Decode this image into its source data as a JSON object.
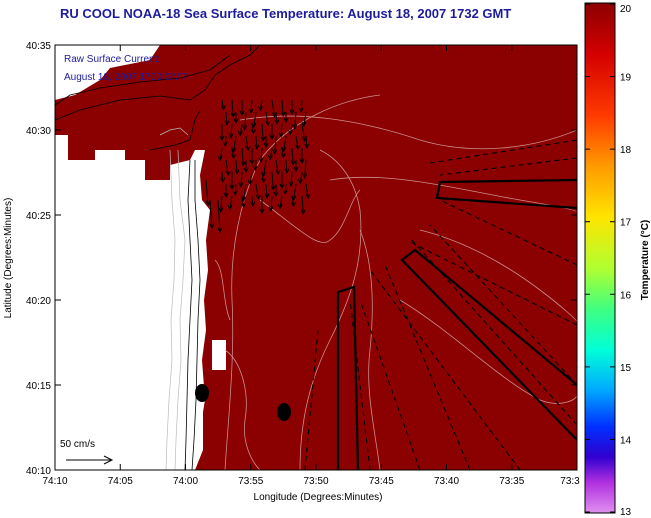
{
  "title": "RU COOL  NOAA-18  Sea Surface Temperature:  August 18, 2007 1732 GMT",
  "inset": {
    "line1": "Raw Surface Current:",
    "line2": "August 18, 2007 1700 GMT"
  },
  "scale_label": "50 cm/s",
  "axes": {
    "xlabel": "Longitude (Degrees:Minutes)",
    "ylabel": "Latitude (Degrees:Minutes)",
    "xticks": [
      "74:10",
      "74:05",
      "74:00",
      "73:55",
      "73:50",
      "73:45",
      "73:40",
      "73:35",
      "73:3"
    ],
    "yticks": [
      "40:35",
      "40:30",
      "40:25",
      "40:20",
      "40:15",
      "40:10"
    ]
  },
  "colorbar": {
    "label": "Temperature (°C)",
    "ticks": [
      "20",
      "19",
      "18",
      "17",
      "16",
      "15",
      "14",
      "13"
    ],
    "min": 13,
    "max": 20
  },
  "colors": {
    "sst": "#8b0000",
    "title": "#1c1c9c"
  }
}
